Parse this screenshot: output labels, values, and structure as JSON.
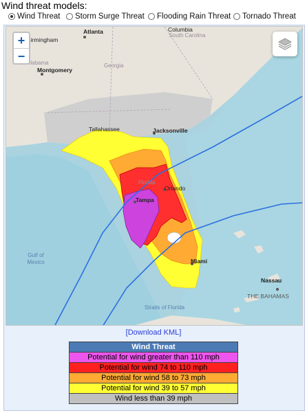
{
  "heading": "Wind threat models:",
  "radios": [
    {
      "label": "Wind Threat",
      "selected": true
    },
    {
      "label": "Storm Surge Threat",
      "selected": false
    },
    {
      "label": "Flooding Rain Threat",
      "selected": false
    },
    {
      "label": "Tornado Threat",
      "selected": false
    }
  ],
  "map": {
    "zoom_in": "+",
    "zoom_out": "−",
    "layers_icon": "layers-icon",
    "labels": {
      "atlanta": "Atlanta",
      "birmingham": "Birmingham",
      "alabama": "Alabama",
      "montgomery": "Montgomery",
      "georgia": "Georgia",
      "columbia": "Columbia",
      "south_carolina": "South Carolina",
      "tallahassee": "Tallahassee",
      "jacksonville": "Jacksonville",
      "florida": "Florida",
      "orlando": "Orlando",
      "tampa": "Tampa",
      "miami": "Miami",
      "gulf_of_mexico": "Gulf of Mexico",
      "straits_of_florida": "Straits of Florida",
      "nassau": "Nassau",
      "the_bahamas": "THE BAHAMAS"
    }
  },
  "download_link": "[Download KML]",
  "legend": {
    "title": "Wind Threat",
    "rows": [
      {
        "label": "Potential for wind greater than 110 mph",
        "color": "#ee55ee"
      },
      {
        "label": "Potential for wind 74 to 110 mph",
        "color": "#ff2020"
      },
      {
        "label": "Potential for wind 58 to 73 mph",
        "color": "#ffaa33"
      },
      {
        "label": "Potential for wind 39 to 57 mph",
        "color": "#ffff33"
      },
      {
        "label": "Wind less than 39 mph",
        "color": "#c0c0c0"
      }
    ]
  }
}
